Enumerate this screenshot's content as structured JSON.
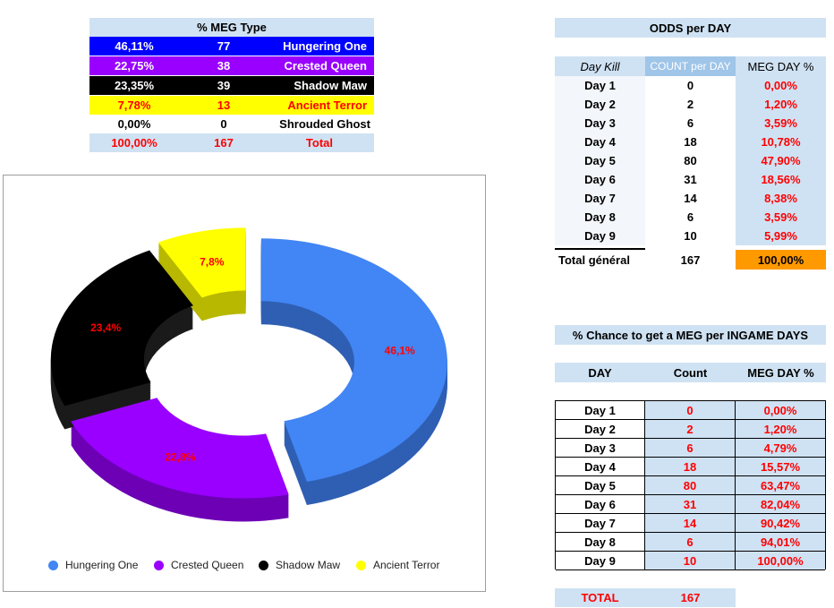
{
  "meg_type": {
    "title": "% MEG Type",
    "rows": [
      {
        "pct": "46,11%",
        "count": "77",
        "name": "Hungering One",
        "bg": "#0000ff",
        "fg": "#ffffff"
      },
      {
        "pct": "22,75%",
        "count": "38",
        "name": "Crested Queen",
        "bg": "#9900ff",
        "fg": "#ffffff"
      },
      {
        "pct": "23,35%",
        "count": "39",
        "name": "Shadow Maw",
        "bg": "#000000",
        "fg": "#ffffff"
      },
      {
        "pct": "7,78%",
        "count": "13",
        "name": "Ancient Terror",
        "bg": "#ffff00",
        "fg": "#ff0000"
      },
      {
        "pct": "0,00%",
        "count": "0",
        "name": "Shrouded Ghost",
        "bg": "#ffffff",
        "fg": "#000000"
      }
    ],
    "total": {
      "pct": "100,00%",
      "count": "167",
      "name": "Total"
    }
  },
  "chart_data": {
    "type": "pie",
    "categories": [
      "Hungering One",
      "Crested Queen",
      "Shadow Maw",
      "Ancient Terror"
    ],
    "values": [
      46.1,
      22.8,
      23.4,
      7.8
    ],
    "labels": [
      "46,1%",
      "22,8%",
      "23,4%",
      "7,8%"
    ],
    "colors": [
      "#4285f4",
      "#9900ff",
      "#000000",
      "#ffff00"
    ],
    "side_colors": [
      "#2f5fb3",
      "#6d00b5",
      "#1a1a1a",
      "#b8b800"
    ],
    "legend_position": "bottom"
  },
  "odds": {
    "title": "ODDS per DAY",
    "headers": [
      "Day Kill",
      "COUNT per DAY",
      "MEG DAY %"
    ],
    "rows": [
      {
        "day": "Day 1",
        "count": "0",
        "pct": "0,00%"
      },
      {
        "day": "Day 2",
        "count": "2",
        "pct": "1,20%"
      },
      {
        "day": "Day 3",
        "count": "6",
        "pct": "3,59%"
      },
      {
        "day": "Day 4",
        "count": "18",
        "pct": "10,78%"
      },
      {
        "day": "Day 5",
        "count": "80",
        "pct": "47,90%"
      },
      {
        "day": "Day 6",
        "count": "31",
        "pct": "18,56%"
      },
      {
        "day": "Day 7",
        "count": "14",
        "pct": "8,38%"
      },
      {
        "day": "Day 8",
        "count": "6",
        "pct": "3,59%"
      },
      {
        "day": "Day 9",
        "count": "10",
        "pct": "5,99%"
      }
    ],
    "total": {
      "label": "Total général",
      "count": "167",
      "pct": "100,00%"
    }
  },
  "chance": {
    "title": "% Chance to get a MEG per INGAME DAYS",
    "headers": [
      "DAY",
      "Count",
      "MEG DAY %"
    ],
    "rows": [
      {
        "day": "Day 1",
        "count": "0",
        "pct": "0,00%"
      },
      {
        "day": "Day 2",
        "count": "2",
        "pct": "1,20%"
      },
      {
        "day": "Day 3",
        "count": "6",
        "pct": "4,79%"
      },
      {
        "day": "Day 4",
        "count": "18",
        "pct": "15,57%"
      },
      {
        "day": "Day 5",
        "count": "80",
        "pct": "63,47%"
      },
      {
        "day": "Day 6",
        "count": "31",
        "pct": "82,04%"
      },
      {
        "day": "Day 7",
        "count": "14",
        "pct": "90,42%"
      },
      {
        "day": "Day 8",
        "count": "6",
        "pct": "94,01%"
      },
      {
        "day": "Day 9",
        "count": "10",
        "pct": "100,00%"
      }
    ],
    "total": {
      "label": "TOTAL",
      "count": "167"
    }
  }
}
